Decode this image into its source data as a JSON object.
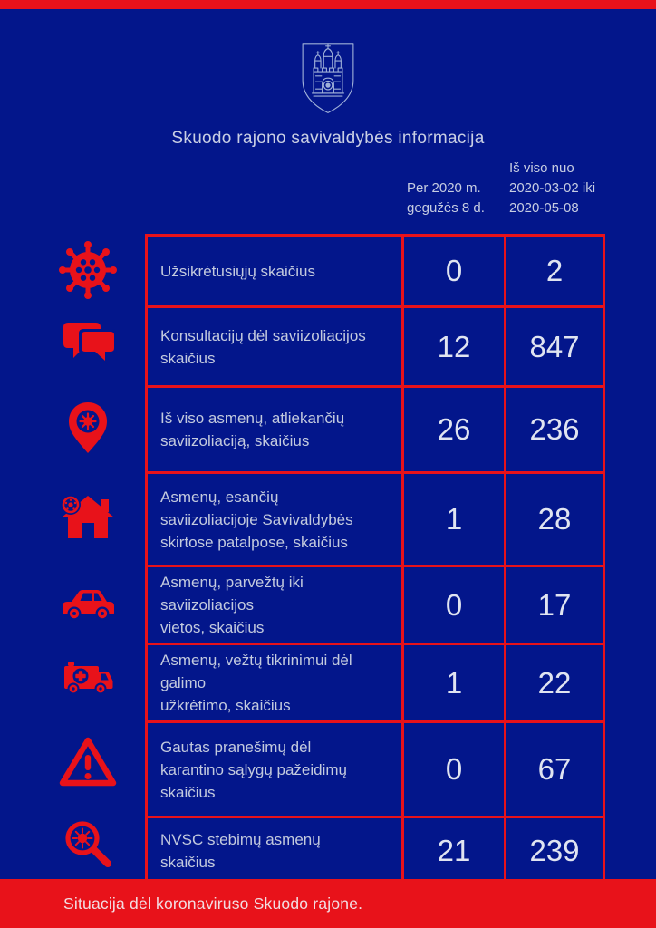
{
  "page": {
    "background_color": "#03168b",
    "accent_color": "#e8121a",
    "text_color": "#c3cade",
    "number_color": "#e0e4f1",
    "emblem_stroke_color": "#9fb0d8"
  },
  "header": {
    "emblem": "skuodas-coat-of-arms",
    "title": "Skuodo rajono savivaldybės informacija"
  },
  "columns": {
    "current": "Per 2020 m.\ngegužės 8 d.",
    "total": "Iš viso nuo\n2020-03-02 iki\n2020-05-08"
  },
  "table": {
    "rows": [
      {
        "icon": "virus-icon",
        "label": "Užsikrėtusiųjų skaičius",
        "current": "0",
        "total": "2"
      },
      {
        "icon": "chat-bubbles-icon",
        "label": "Konsultacijų dėl saviizoliacijos\nskaičius",
        "current": "12",
        "total": "847"
      },
      {
        "icon": "map-pin-virus-icon",
        "label": "Iš viso asmenų, atliekančių\nsaviizoliaciją, skaičius",
        "current": "26",
        "total": "236"
      },
      {
        "icon": "house-virus-icon",
        "label": "Asmenų, esančių\nsaviizoliacijoje Savivaldybės\nskirtose patalpose, skaičius",
        "current": "1",
        "total": "28"
      },
      {
        "icon": "car-icon",
        "label": "Asmenų, parvežtų iki saviizoliacijos\nvietos, skaičius",
        "current": "0",
        "total": "17"
      },
      {
        "icon": "ambulance-icon",
        "label": "Asmenų, vežtų tikrinimui dėl galimo\nužkrėtimo, skaičius",
        "current": "1",
        "total": "22"
      },
      {
        "icon": "warning-triangle-icon",
        "label": "Gautas pranešimų dėl\nkarantino sąlygų pažeidimų\nskaičius",
        "current": "0",
        "total": "67"
      },
      {
        "icon": "magnifier-virus-icon",
        "label": "NVSC stebimų asmenų skaičius",
        "current": "21",
        "total": "239"
      }
    ]
  },
  "footer": {
    "text": "Situacija dėl koronaviruso Skuodo rajone."
  }
}
